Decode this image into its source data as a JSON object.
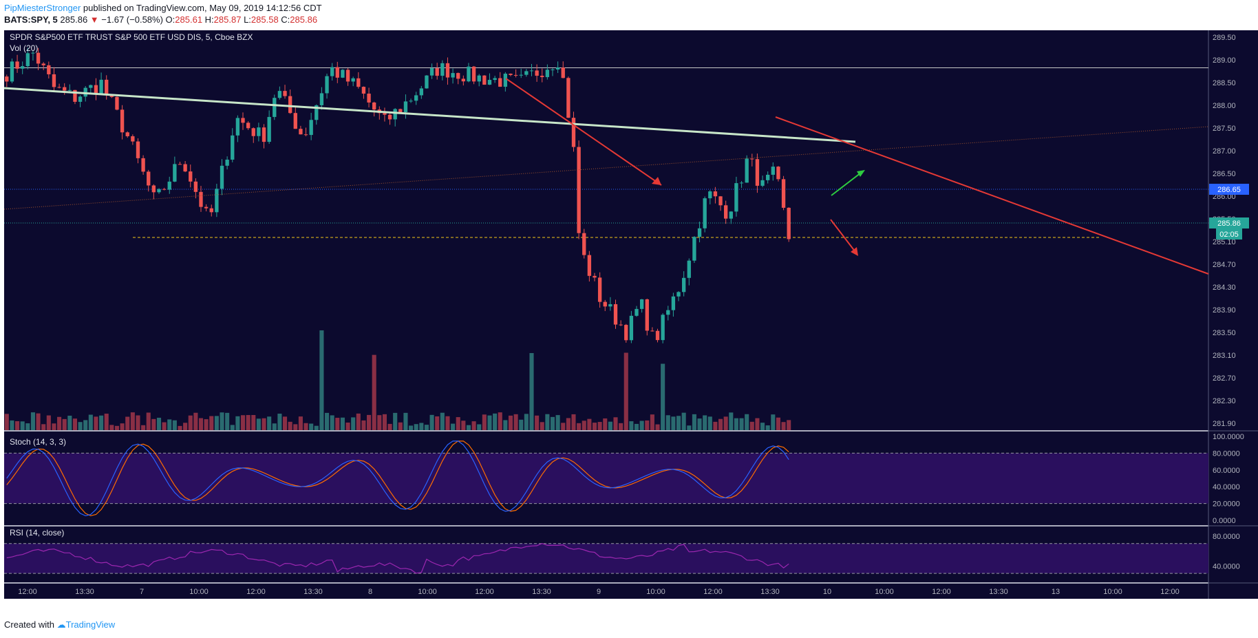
{
  "header": {
    "author": "PipMiesterStronger",
    "published_text": "published on TradingView.com, May 09, 2019 14:12:56 CDT",
    "symbol": "BATS:SPY, 5",
    "last": "285.86",
    "change_arrow": "▼",
    "change": "−1.67 (−0.58%)",
    "o_label": "O:",
    "o_value": "285.61",
    "h_label": "H:",
    "h_value": "285.87",
    "l_label": "L:",
    "l_value": "285.58",
    "c_label": "C:",
    "c_value": "285.86"
  },
  "legend": {
    "title": "SPDR S&P500 ETF TRUST S&P 500 ETF USD DIS, 5, Cboe BZX",
    "volume": "Vol (20)"
  },
  "price_axis": {
    "ticks": [
      "289.50",
      "289.00",
      "288.50",
      "288.00",
      "287.50",
      "287.00",
      "286.50",
      "286.00",
      "285.50",
      "285.10",
      "284.70",
      "284.30",
      "283.90",
      "283.50",
      "283.10",
      "282.70",
      "282.30",
      "281.90"
    ],
    "badge_level": "286.65",
    "badge_last": "285.86",
    "badge_countdown": "02:05"
  },
  "stoch": {
    "label": "Stoch (14, 3, 3)",
    "ticks": [
      "100.0000",
      "80.0000",
      "60.0000",
      "40.0000",
      "20.0000",
      "0.0000"
    ]
  },
  "rsi": {
    "label": "RSI (14, close)",
    "ticks": [
      "80.0000",
      "40.0000"
    ]
  },
  "time_axis": {
    "ticks": [
      "12:00",
      "13:30",
      "7",
      "10:00",
      "12:00",
      "13:30",
      "8",
      "10:00",
      "12:00",
      "13:30",
      "9",
      "10:00",
      "12:00",
      "13:30",
      "10",
      "10:00",
      "12:00",
      "13:30",
      "13",
      "10:00",
      "12:00"
    ]
  },
  "footer": {
    "created_with": "Created with",
    "brand": "TradingView"
  },
  "colors": {
    "background": "#0c0a2e",
    "up": "#26a69a",
    "down": "#ef5350",
    "trendline": "#c8e6c9",
    "arrow_down": "#e53935",
    "arrow_up": "#2ecc40",
    "support": "#f5c518",
    "stoch_band": "#2a0f5e",
    "rsi_band": "#2a0f5e",
    "k_line": "#2962ff",
    "d_line": "#ff6d00",
    "rsi_line": "#9c27b0"
  },
  "chart_data": {
    "type": "candlestick",
    "symbol": "BATS:SPY",
    "interval": "5",
    "price_range": [
      281.75,
      289.75
    ],
    "horizontal_levels": [
      289.0,
      286.65,
      285.86
    ],
    "support_level": 285.5,
    "days": [
      "7",
      "8",
      "9",
      "10",
      "13"
    ],
    "session_pivots": [
      {
        "t": 0.0,
        "p": 288.9
      },
      {
        "t": 0.02,
        "p": 289.3
      },
      {
        "t": 0.035,
        "p": 288.6
      },
      {
        "t": 0.05,
        "p": 288.4
      },
      {
        "t": 0.07,
        "p": 288.7
      },
      {
        "t": 0.09,
        "p": 287.6
      },
      {
        "t": 0.11,
        "p": 286.3
      },
      {
        "t": 0.13,
        "p": 287.2
      },
      {
        "t": 0.15,
        "p": 285.9
      },
      {
        "t": 0.17,
        "p": 288.0
      },
      {
        "t": 0.19,
        "p": 287.6
      },
      {
        "t": 0.2,
        "p": 288.6
      },
      {
        "t": 0.22,
        "p": 287.6
      },
      {
        "t": 0.24,
        "p": 289.0
      },
      {
        "t": 0.26,
        "p": 288.6
      },
      {
        "t": 0.28,
        "p": 287.9
      },
      {
        "t": 0.3,
        "p": 288.4
      },
      {
        "t": 0.32,
        "p": 289.0
      },
      {
        "t": 0.35,
        "p": 288.8
      },
      {
        "t": 0.38,
        "p": 288.7
      },
      {
        "t": 0.41,
        "p": 289.2
      },
      {
        "t": 0.42,
        "p": 287.5
      },
      {
        "t": 0.425,
        "p": 285.4
      },
      {
        "t": 0.44,
        "p": 284.4
      },
      {
        "t": 0.46,
        "p": 283.7
      },
      {
        "t": 0.47,
        "p": 284.3
      },
      {
        "t": 0.48,
        "p": 283.5
      },
      {
        "t": 0.5,
        "p": 284.7
      },
      {
        "t": 0.51,
        "p": 285.6
      },
      {
        "t": 0.52,
        "p": 286.5
      },
      {
        "t": 0.535,
        "p": 286.1
      },
      {
        "t": 0.55,
        "p": 287.2
      },
      {
        "t": 0.56,
        "p": 286.6
      },
      {
        "t": 0.57,
        "p": 286.9
      },
      {
        "t": 0.58,
        "p": 285.6
      }
    ],
    "stoch_levels": [
      20,
      80
    ],
    "rsi_levels": [
      30,
      70
    ]
  }
}
